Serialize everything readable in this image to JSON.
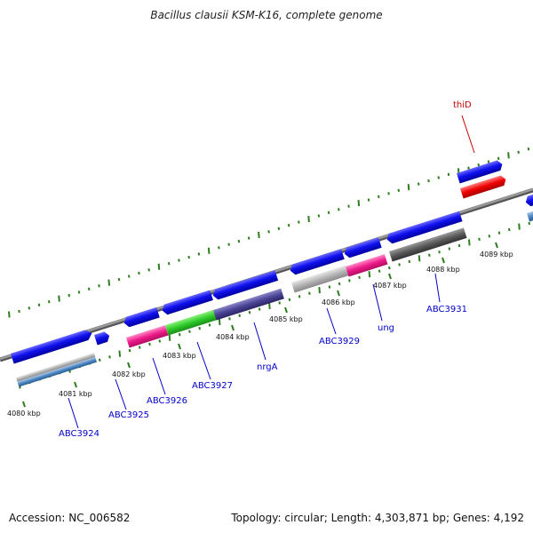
{
  "title": "Bacillus clausii KSM-K16, complete genome",
  "footer": {
    "accession": "Accession: NC_006582",
    "summary": "Topology: circular; Length: 4,303,871 bp; Genes: 4,192"
  },
  "colors": {
    "backbone": "#808080",
    "tick_green": "#2e7d1f",
    "label_blue": "#0000cc",
    "label_red": "#cc0000"
  },
  "scale_labels": [
    "4080 kbp",
    "4081 kbp",
    "4082 kbp",
    "4083 kbp",
    "4084 kbp",
    "4085 kbp",
    "4086 kbp",
    "4087 kbp",
    "4088 kbp",
    "4089 kbp"
  ],
  "gene_labels": [
    {
      "id": "ABC3924",
      "text": "ABC3924",
      "color": "#0000cc"
    },
    {
      "id": "ABC3925",
      "text": "ABC3925",
      "color": "#0000cc"
    },
    {
      "id": "ABC3926",
      "text": "ABC3926",
      "color": "#0000cc"
    },
    {
      "id": "ABC3927",
      "text": "ABC3927",
      "color": "#0000cc"
    },
    {
      "id": "nrgA",
      "text": "nrgA",
      "color": "#0000cc"
    },
    {
      "id": "ABC3929",
      "text": "ABC3929",
      "color": "#0000cc"
    },
    {
      "id": "ung",
      "text": "ung",
      "color": "#0000cc"
    },
    {
      "id": "ABC3931",
      "text": "ABC3931",
      "color": "#0000cc"
    },
    {
      "id": "thiD",
      "text": "thiD",
      "color": "#cc0000"
    }
  ]
}
